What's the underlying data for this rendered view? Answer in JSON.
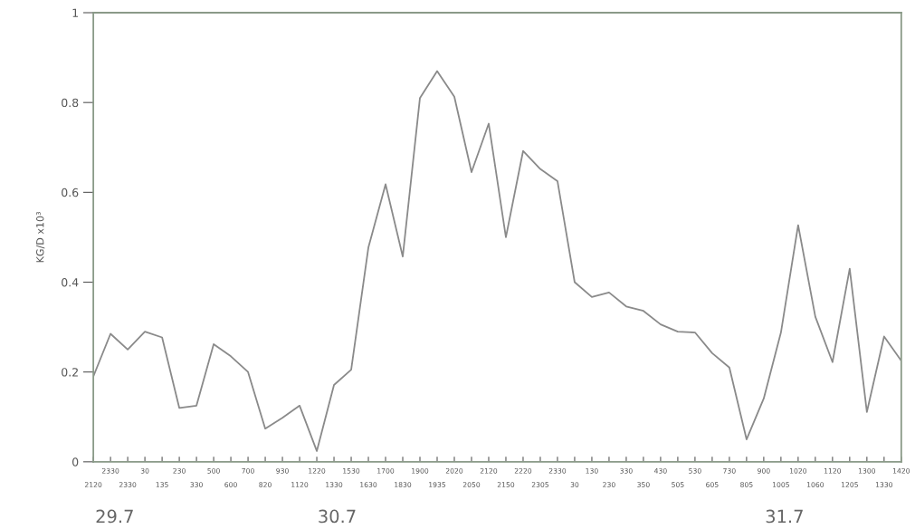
{
  "chart_data": {
    "type": "line",
    "ylabel": "KG/D x10³",
    "categories": [
      "2120",
      "2330",
      "2330",
      "30",
      "135",
      "230",
      "330",
      "500",
      "600",
      "700",
      "820",
      "930",
      "1120",
      "1220",
      "1330",
      "1530",
      "1630",
      "1700",
      "1830",
      "1900",
      "1935",
      "2020",
      "2050",
      "2120",
      "2150",
      "2220",
      "2305",
      "2330",
      "30",
      "130",
      "230",
      "330",
      "350",
      "430",
      "505",
      "530",
      "605",
      "730",
      "805",
      "900",
      "1005",
      "1020",
      "1060",
      "1120",
      "1205",
      "1300",
      "1330",
      "1420"
    ],
    "series": [
      {
        "color": "#8a8a8a",
        "values": [
          0.19,
          0.285,
          0.25,
          0.29,
          0.277,
          0.12,
          0.125,
          0.262,
          0.235,
          0.2,
          0.074,
          0.098,
          0.125,
          0.024,
          0.171,
          0.205,
          0.477,
          0.618,
          0.457,
          0.81,
          0.87,
          0.813,
          0.645,
          0.753,
          0.5,
          0.692,
          0.652,
          0.625,
          0.4,
          0.367,
          0.377,
          0.346,
          0.336,
          0.306,
          0.29,
          0.288,
          0.242,
          0.21,
          0.05,
          0.141,
          0.288,
          0.527,
          0.323,
          0.222,
          0.43,
          0.111,
          0.279,
          0.225
        ]
      }
    ],
    "ylim": [
      0,
      1
    ],
    "yticks": [
      0,
      0.2,
      0.4,
      0.6,
      0.8,
      1
    ],
    "annotations": [
      "29.7",
      "30.7",
      "31.7"
    ],
    "grid": false,
    "legend": false,
    "marker": "none",
    "line_style": "solid"
  }
}
